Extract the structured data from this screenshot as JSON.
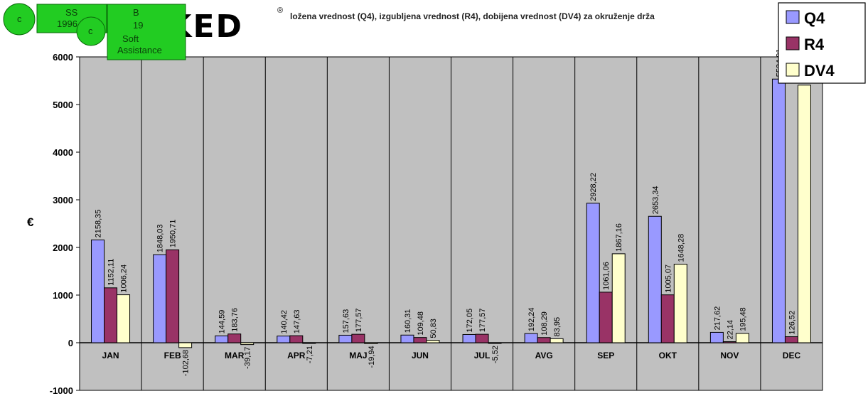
{
  "overlay": {
    "badge1": {
      "icon": "c",
      "line1": "SS",
      "line2": "1996"
    },
    "badge2": {
      "icon": "c",
      "line1": "B",
      "line2": "19",
      "line3": "Soft",
      "line4": "Assistance"
    },
    "logo": {
      "text": "OKED",
      "mark": "®"
    }
  },
  "chart_data": {
    "type": "bar",
    "title": "ložena vrednost (Q4), izgubljena vrednost (R4), dobijena vrednost (DV4) za okruženje drža",
    "ylabel": "€",
    "xlabel": "",
    "ylim": [
      -1000,
      6000
    ],
    "yticks": [
      "-1000",
      "0",
      "1000",
      "2000",
      "3000",
      "4000",
      "5000",
      "6000"
    ],
    "grid": true,
    "legend_position": "top-right",
    "categories": [
      "JAN",
      "FEB",
      "MAR",
      "APR",
      "MAJ",
      "JUN",
      "JUL",
      "AVG",
      "SEP",
      "OKT",
      "NOV",
      "DEC"
    ],
    "series": [
      {
        "name": "Q4",
        "color": "#9999FF",
        "values": [
          2158.35,
          1848.03,
          144.59,
          140.42,
          157.63,
          160.31,
          172.05,
          192.24,
          2928.22,
          2653.34,
          217.62,
          5534.01
        ],
        "labels": [
          "2158,35",
          "1848,03",
          "144,59",
          "140,42",
          "157,63",
          "160,31",
          "172,05",
          "192,24",
          "2928,22",
          "2653,34",
          "217,62",
          "5534,01"
        ]
      },
      {
        "name": "R4",
        "color": "#993366",
        "values": [
          1152.11,
          1950.71,
          183.76,
          147.63,
          177.57,
          109.48,
          177.57,
          108.29,
          1061.06,
          1005.07,
          22.14,
          126.52
        ],
        "labels": [
          "1152,11",
          "1950,71",
          "183,76",
          "147,63",
          "177,57",
          "109,48",
          "177,57",
          "108,29",
          "1061,06",
          "1005,07",
          "22,14",
          "126,52"
        ]
      },
      {
        "name": "DV4",
        "color": "#FFFFCC",
        "values": [
          1006.24,
          -102.68,
          -39.17,
          -7.21,
          -19.94,
          50.83,
          -5.52,
          83.95,
          1867.16,
          1648.28,
          195.48,
          5407.49
        ],
        "labels": [
          "1006,24",
          "-102,68",
          "-39,17",
          "-7,21",
          "-19,94",
          "50,83",
          "-5,52",
          "83,95",
          "1867,16",
          "1648,28",
          "195,48",
          ""
        ]
      }
    ]
  }
}
